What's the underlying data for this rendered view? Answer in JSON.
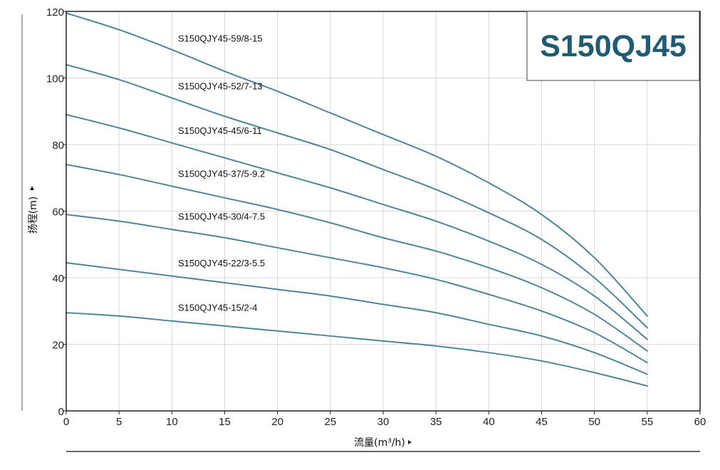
{
  "chart_data": {
    "type": "line",
    "title": "S150QJ45",
    "xlabel": "流量(m³/h)",
    "ylabel": "扬程(m)",
    "xlim": [
      0,
      60
    ],
    "ylim": [
      0,
      120
    ],
    "xticks": [
      "0",
      "5",
      "10",
      "15",
      "20",
      "25",
      "30",
      "35",
      "40",
      "45",
      "50",
      "55",
      "60"
    ],
    "yticks": [
      "0",
      "20",
      "40",
      "60",
      "80",
      "100",
      "120"
    ],
    "grid": true,
    "line_color": "#4e8599",
    "title_color": "#1f5c74",
    "x": [
      0,
      5,
      10,
      15,
      20,
      25,
      30,
      35,
      40,
      45,
      50,
      55
    ],
    "series": [
      {
        "name": "S150QJY45-59/8-15",
        "values": [
          119.5,
          114.5,
          108.5,
          102,
          96,
          89.5,
          83,
          76.5,
          68.5,
          59,
          46,
          28.5
        ]
      },
      {
        "name": "S150QJY45-52/7-13",
        "values": [
          104,
          99.5,
          94,
          88.5,
          83.5,
          78.5,
          72.5,
          66.5,
          59.5,
          51.5,
          40,
          25
        ]
      },
      {
        "name": "S150QJY45-45/6-11",
        "values": [
          89,
          85,
          80.5,
          76,
          71.5,
          67,
          62,
          57,
          51,
          44,
          34.5,
          21.5
        ]
      },
      {
        "name": "S150QJY45-37/5-9.2",
        "values": [
          74,
          71,
          67.5,
          64,
          60.5,
          56.5,
          52,
          48,
          43,
          37,
          29,
          18
        ]
      },
      {
        "name": "S150QJY45-30/4-7.5",
        "values": [
          59,
          57,
          54.5,
          52,
          49,
          46,
          43,
          39.5,
          35,
          30,
          23.5,
          14.5
        ]
      },
      {
        "name": "S150QJY45-22/3-5.5",
        "values": [
          44.5,
          42.5,
          40.5,
          38.5,
          36.5,
          34.5,
          32,
          29.5,
          26,
          22.5,
          17.5,
          11
        ]
      },
      {
        "name": "S150QJY45-15/2-4",
        "values": [
          29.5,
          28.5,
          27,
          25.5,
          24,
          22.5,
          21,
          19.5,
          17.5,
          15,
          11.5,
          7.5
        ]
      }
    ]
  }
}
